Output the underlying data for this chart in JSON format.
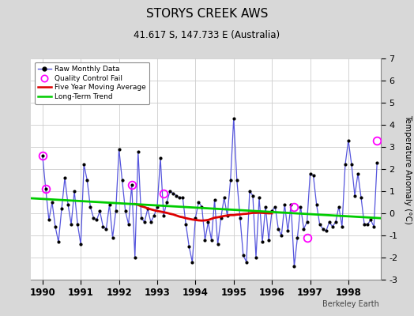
{
  "title": "STORYS CREEK AWS",
  "subtitle": "41.617 S, 147.733 E (Australia)",
  "ylabel": "Temperature Anomaly (°C)",
  "credit": "Berkeley Earth",
  "xlim": [
    1989.7,
    1998.85
  ],
  "ylim": [
    -3,
    7
  ],
  "yticks": [
    -3,
    -2,
    -1,
    0,
    1,
    2,
    3,
    4,
    5,
    6,
    7
  ],
  "xticks": [
    1990,
    1991,
    1992,
    1993,
    1994,
    1995,
    1996,
    1997,
    1998
  ],
  "bg_color": "#d8d8d8",
  "plot_bg_color": "#ffffff",
  "raw_color": "#5555dd",
  "ma_color": "#dd0000",
  "trend_color": "#00cc00",
  "qc_color": "#ff00ff",
  "raw_x": [
    1990.0,
    1990.083,
    1990.167,
    1990.25,
    1990.333,
    1990.417,
    1990.5,
    1990.583,
    1990.667,
    1990.75,
    1990.833,
    1990.917,
    1991.0,
    1991.083,
    1991.167,
    1991.25,
    1991.333,
    1991.417,
    1991.5,
    1991.583,
    1991.667,
    1991.75,
    1991.833,
    1991.917,
    1992.0,
    1992.083,
    1992.167,
    1992.25,
    1992.333,
    1992.417,
    1992.5,
    1992.583,
    1992.667,
    1992.75,
    1992.833,
    1992.917,
    1993.0,
    1993.083,
    1993.167,
    1993.25,
    1993.333,
    1993.417,
    1993.5,
    1993.583,
    1993.667,
    1993.75,
    1993.833,
    1993.917,
    1994.0,
    1994.083,
    1994.167,
    1994.25,
    1994.333,
    1994.417,
    1994.5,
    1994.583,
    1994.667,
    1994.75,
    1994.833,
    1994.917,
    1995.0,
    1995.083,
    1995.167,
    1995.25,
    1995.333,
    1995.417,
    1995.5,
    1995.583,
    1995.667,
    1995.75,
    1995.833,
    1995.917,
    1996.0,
    1996.083,
    1996.167,
    1996.25,
    1996.333,
    1996.417,
    1996.5,
    1996.583,
    1996.667,
    1996.75,
    1996.833,
    1996.917,
    1997.0,
    1997.083,
    1997.167,
    1997.25,
    1997.333,
    1997.417,
    1997.5,
    1997.583,
    1997.667,
    1997.75,
    1997.833,
    1997.917,
    1998.0,
    1998.083,
    1998.167,
    1998.25,
    1998.333,
    1998.417,
    1998.5,
    1998.583,
    1998.667,
    1998.75
  ],
  "raw_y": [
    2.6,
    1.1,
    -0.3,
    0.5,
    -0.6,
    -1.3,
    0.2,
    1.6,
    0.4,
    -0.5,
    1.0,
    -0.5,
    -1.4,
    2.2,
    1.5,
    0.3,
    -0.2,
    -0.3,
    0.1,
    -0.6,
    -0.7,
    0.4,
    -1.1,
    0.1,
    2.9,
    1.5,
    0.1,
    -0.5,
    1.3,
    -2.0,
    2.8,
    -0.2,
    -0.4,
    0.2,
    -0.4,
    -0.1,
    0.3,
    2.5,
    -0.1,
    0.5,
    1.0,
    0.9,
    0.8,
    0.7,
    0.7,
    -0.5,
    -1.5,
    -2.2,
    -0.2,
    0.5,
    0.3,
    -1.2,
    -0.4,
    -1.2,
    0.6,
    -1.4,
    -0.2,
    0.7,
    -0.1,
    1.5,
    4.3,
    1.5,
    -0.2,
    -1.9,
    -2.2,
    1.0,
    0.8,
    -2.0,
    0.7,
    -1.3,
    0.3,
    -1.2,
    0.1,
    0.3,
    -0.7,
    -1.0,
    0.4,
    -0.8,
    0.4,
    -2.4,
    -1.1,
    0.3,
    -0.7,
    -0.4,
    1.8,
    1.7,
    0.4,
    -0.5,
    -0.7,
    -0.8,
    -0.4,
    -0.6,
    -0.4,
    0.3,
    -0.6,
    2.2,
    3.3,
    2.2,
    0.8,
    1.8,
    0.7,
    -0.5,
    -0.5,
    -0.3,
    -0.6,
    2.3
  ],
  "qc_fail_x": [
    1990.0,
    1990.083,
    1992.333,
    1993.167,
    1996.583,
    1996.917,
    1998.75
  ],
  "qc_fail_y": [
    2.6,
    1.1,
    1.3,
    0.9,
    0.3,
    -1.1,
    3.3
  ],
  "ma_x": [
    1992.417,
    1992.5,
    1992.583,
    1992.667,
    1992.75,
    1992.833,
    1992.917,
    1993.0,
    1993.083,
    1993.167,
    1993.25,
    1993.333,
    1993.417,
    1993.5,
    1993.583,
    1993.667,
    1993.75,
    1993.833,
    1993.917,
    1994.0,
    1994.083,
    1994.167,
    1994.25,
    1994.333,
    1994.417,
    1994.5,
    1994.583,
    1994.667,
    1994.75,
    1994.833,
    1994.917,
    1995.0,
    1995.083,
    1995.167,
    1995.25,
    1995.333,
    1995.417,
    1995.5,
    1995.583,
    1995.667,
    1995.75,
    1995.833,
    1995.917,
    1996.0
  ],
  "ma_y": [
    0.42,
    0.38,
    0.32,
    0.28,
    0.22,
    0.18,
    0.14,
    0.1,
    0.08,
    0.05,
    0.02,
    -0.02,
    -0.05,
    -0.1,
    -0.15,
    -0.18,
    -0.22,
    -0.25,
    -0.28,
    -0.3,
    -0.32,
    -0.33,
    -0.32,
    -0.3,
    -0.25,
    -0.2,
    -0.18,
    -0.15,
    -0.12,
    -0.1,
    -0.08,
    -0.08,
    -0.06,
    -0.05,
    -0.03,
    -0.02,
    0.0,
    0.02,
    0.02,
    0.03,
    0.02,
    0.01,
    0.0,
    0.0
  ],
  "trend_x": [
    1989.7,
    1998.85
  ],
  "trend_y": [
    0.68,
    -0.22
  ]
}
